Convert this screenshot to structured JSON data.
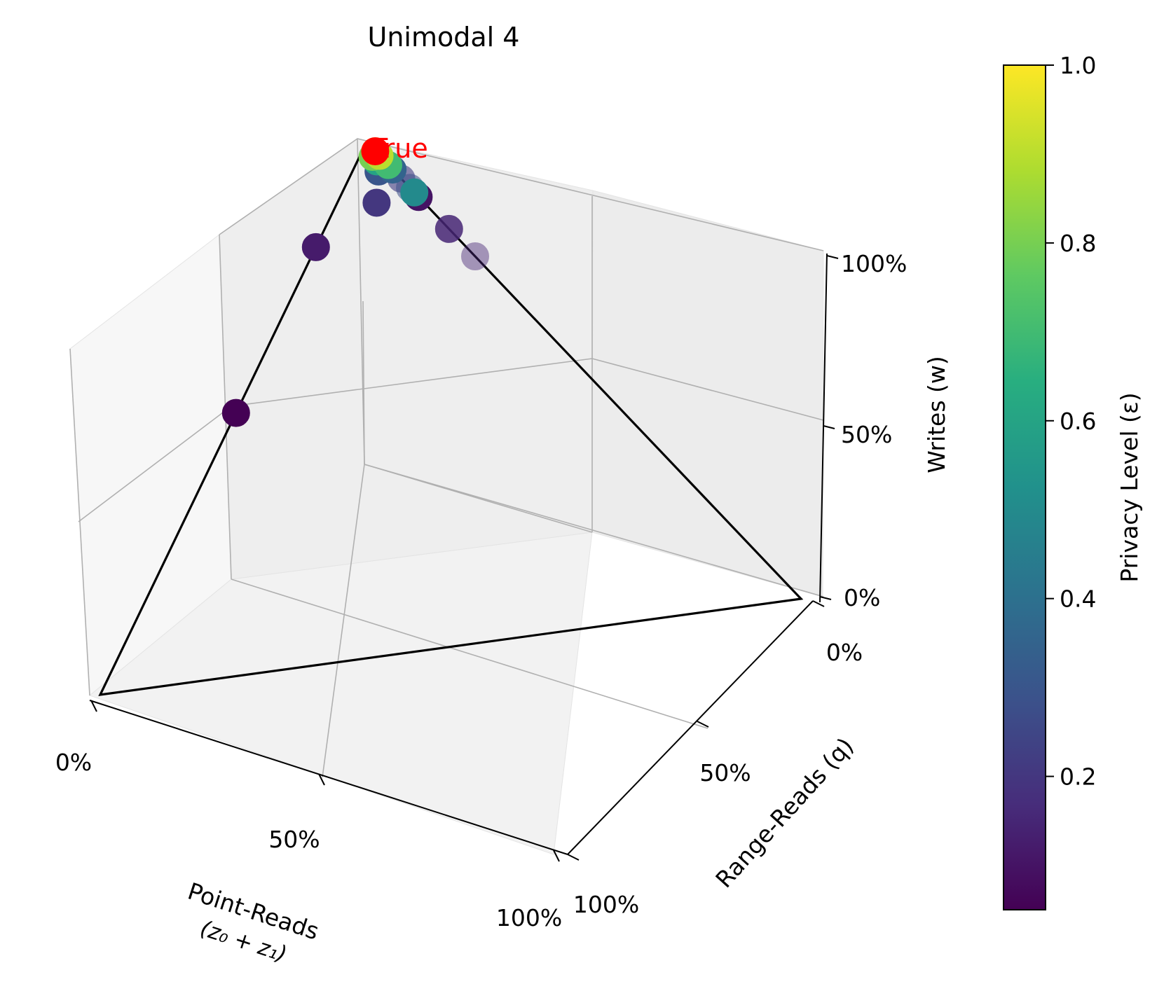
{
  "chart_data": {
    "type": "scatter",
    "projection": "3d",
    "title": "Unimodal 4",
    "xlabel_line1": "Point-Reads",
    "xlabel_line2": "(z₀ + z₁)",
    "ylabel": "Range-Reads (q)",
    "zlabel": "Writes (w)",
    "x_ticks": [
      "0%",
      "50%",
      "100%"
    ],
    "y_ticks": [
      "0%",
      "50%",
      "100%"
    ],
    "z_ticks": [
      "0%",
      "50%",
      "100%"
    ],
    "xlim": [
      0,
      1
    ],
    "ylim": [
      0,
      1
    ],
    "zlim": [
      0,
      1
    ],
    "grid": true,
    "simplex_outline": true,
    "colormap": "viridis",
    "colorbar": {
      "label": "Privacy Level (ε)",
      "range": [
        0.05,
        1.0
      ],
      "ticks": [
        "0.2",
        "0.4",
        "0.6",
        "0.8",
        "1.0"
      ],
      "tick_values": [
        0.2,
        0.4,
        0.6,
        0.8,
        1.0
      ]
    },
    "true_point": {
      "x": 0.0,
      "y": 0.02,
      "z": 0.98,
      "label": "True",
      "color": "#ff0000"
    },
    "points": [
      {
        "x": 0.49,
        "y": 0.0,
        "z": 0.51,
        "eps": 0.05
      },
      {
        "x": 0.19,
        "y": 0.0,
        "z": 0.81,
        "eps": 0.12
      },
      {
        "x": 0.0,
        "y": 0.19,
        "z": 0.81,
        "eps": 0.15,
        "alpha": 0.85
      },
      {
        "x": 0.0,
        "y": 0.25,
        "z": 0.75,
        "eps": 0.15,
        "alpha": 0.45
      },
      {
        "x": 0.0,
        "y": 0.12,
        "z": 0.88,
        "eps": 0.1
      },
      {
        "x": 0.06,
        "y": 0.06,
        "z": 0.88,
        "eps": 0.2
      },
      {
        "x": 0.02,
        "y": 0.04,
        "z": 0.94,
        "eps": 0.3
      },
      {
        "x": 0.0,
        "y": 0.08,
        "z": 0.92,
        "eps": 0.22,
        "alpha": 0.6
      },
      {
        "x": 0.0,
        "y": 0.1,
        "z": 0.9,
        "eps": 0.28,
        "alpha": 0.55
      },
      {
        "x": 0.0,
        "y": 0.06,
        "z": 0.94,
        "eps": 0.35
      },
      {
        "x": 0.0,
        "y": 0.11,
        "z": 0.89,
        "eps": 0.5
      },
      {
        "x": 0.01,
        "y": 0.03,
        "z": 0.96,
        "eps": 0.6
      },
      {
        "x": 0.0,
        "y": 0.05,
        "z": 0.95,
        "eps": 0.7
      },
      {
        "x": 0.01,
        "y": 0.02,
        "z": 0.97,
        "eps": 0.8
      },
      {
        "x": 0.0,
        "y": 0.03,
        "z": 0.97,
        "eps": 0.9
      },
      {
        "x": 0.0,
        "y": 0.02,
        "z": 0.98,
        "eps": 1.0
      }
    ]
  }
}
